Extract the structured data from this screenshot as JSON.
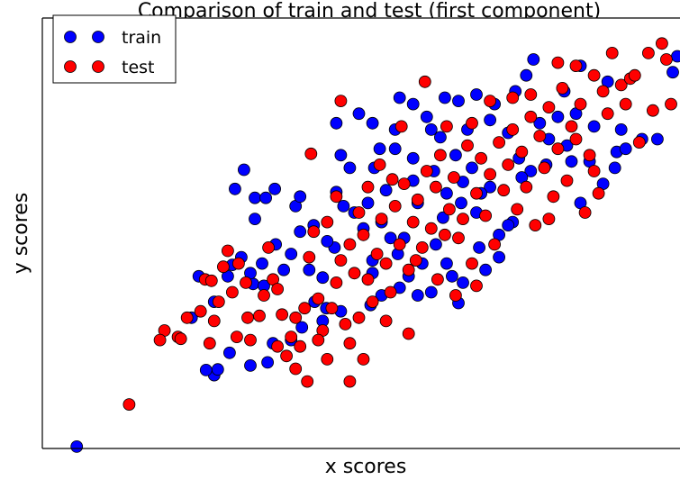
{
  "chart_data": {
    "type": "scatter",
    "title": "Comparison of train and test (first component)",
    "xlabel": "x scores",
    "ylabel": "y scores",
    "xlim": [
      -3.85,
      3.2
    ],
    "ylim": [
      -3.5,
      3.25
    ],
    "grid": false,
    "legend_position": "top-left",
    "ticks_visible": false,
    "series": [
      {
        "name": "train",
        "color": "#0000ff",
        "points": [
          [
            -3.47,
            -3.47
          ],
          [
            -1.95,
            -2.35
          ],
          [
            -1.91,
            -2.26
          ],
          [
            -2.04,
            -2.27
          ],
          [
            -1.78,
            -2.0
          ],
          [
            -1.55,
            -2.2
          ],
          [
            -1.36,
            -2.15
          ],
          [
            -1.3,
            -1.85
          ],
          [
            -1.1,
            -1.8
          ],
          [
            -0.98,
            -1.6
          ],
          [
            -0.84,
            -1.2
          ],
          [
            -0.71,
            -1.3
          ],
          [
            -1.52,
            -0.92
          ],
          [
            -1.4,
            -0.95
          ],
          [
            -1.65,
            -0.5
          ],
          [
            -1.55,
            -0.75
          ],
          [
            -1.42,
            -0.6
          ],
          [
            -1.18,
            -0.7
          ],
          [
            -0.9,
            -0.7
          ],
          [
            -0.75,
            -0.82
          ],
          [
            -0.62,
            -0.35
          ],
          [
            -1.0,
            -0.1
          ],
          [
            -0.85,
            0.0
          ],
          [
            -1.72,
            0.57
          ],
          [
            -1.5,
            0.43
          ],
          [
            -1.38,
            0.43
          ],
          [
            -1.28,
            0.57
          ],
          [
            -1.05,
            0.3
          ],
          [
            -0.6,
            0.52
          ],
          [
            -0.52,
            0.3
          ],
          [
            -0.4,
            0.2
          ],
          [
            -0.25,
            0.35
          ],
          [
            -0.3,
            -0.05
          ],
          [
            -0.1,
            0.05
          ],
          [
            0.0,
            -0.2
          ],
          [
            0.08,
            -0.45
          ],
          [
            0.2,
            -0.8
          ],
          [
            0.3,
            -1.1
          ],
          [
            0.35,
            -0.6
          ],
          [
            0.5,
            -0.3
          ],
          [
            0.62,
            -0.6
          ],
          [
            0.68,
            -0.8
          ],
          [
            -0.22,
            -1.25
          ],
          [
            -0.1,
            -1.1
          ],
          [
            0.1,
            -0.98
          ],
          [
            -0.2,
            -0.75
          ],
          [
            0.45,
            -1.05
          ],
          [
            0.8,
            -0.9
          ],
          [
            1.05,
            -0.7
          ],
          [
            1.2,
            -0.15
          ],
          [
            1.35,
            0.05
          ],
          [
            1.1,
            0.6
          ],
          [
            0.9,
            0.9
          ],
          [
            0.72,
            1.1
          ],
          [
            0.55,
            1.38
          ],
          [
            0.4,
            1.7
          ],
          [
            0.25,
            1.9
          ],
          [
            0.1,
            2.0
          ],
          [
            -0.18,
            0.9
          ],
          [
            -0.12,
            1.2
          ],
          [
            0.05,
            1.2
          ],
          [
            0.25,
            1.05
          ],
          [
            0.48,
            0.85
          ],
          [
            0.62,
            0.5
          ],
          [
            0.78,
            0.35
          ],
          [
            0.95,
            0.2
          ],
          [
            1.0,
            0.5
          ],
          [
            0.85,
            1.5
          ],
          [
            1.1,
            1.65
          ],
          [
            1.3,
            1.45
          ],
          [
            1.42,
            1.05
          ],
          [
            1.55,
            0.85
          ],
          [
            1.65,
            1.6
          ],
          [
            1.75,
            1.35
          ],
          [
            1.85,
            1.7
          ],
          [
            1.95,
            1.25
          ],
          [
            2.05,
            1.75
          ],
          [
            1.92,
            2.1
          ],
          [
            2.1,
            2.5
          ],
          [
            2.4,
            2.25
          ],
          [
            2.55,
            1.5
          ],
          [
            2.48,
            0.9
          ],
          [
            2.35,
            0.65
          ],
          [
            2.1,
            0.35
          ],
          [
            2.2,
            1.0
          ],
          [
            1.58,
            2.6
          ],
          [
            1.5,
            2.35
          ],
          [
            1.38,
            2.1
          ],
          [
            1.15,
            1.9
          ],
          [
            0.95,
            2.05
          ],
          [
            0.75,
            1.95
          ],
          [
            0.6,
            2.0
          ],
          [
            -0.2,
            1.6
          ],
          [
            -0.6,
            1.6
          ],
          [
            -0.55,
            1.1
          ],
          [
            -0.45,
            0.9
          ],
          [
            1.3,
            0.0
          ],
          [
            1.2,
            -0.5
          ],
          [
            0.98,
            -0.35
          ],
          [
            2.25,
            1.55
          ],
          [
            2.5,
            1.15
          ],
          [
            2.6,
            1.2
          ],
          [
            2.78,
            1.35
          ],
          [
            2.95,
            1.35
          ],
          [
            3.12,
            2.4
          ],
          [
            3.17,
            2.65
          ],
          [
            -0.35,
            1.75
          ],
          [
            -1.62,
            0.87
          ],
          [
            -1.5,
            0.1
          ],
          [
            -1.75,
            -0.62
          ],
          [
            -1.1,
            -0.45
          ],
          [
            -0.7,
            -0.25
          ],
          [
            -0.2,
            -0.55
          ],
          [
            0.15,
            -0.2
          ],
          [
            0.3,
            0.35
          ],
          [
            0.58,
            0.12
          ],
          [
            0.8,
            0.68
          ],
          [
            1.45,
            0.75
          ],
          [
            1.72,
            0.95
          ],
          [
            2.0,
            1.0
          ],
          [
            -0.55,
            -1.35
          ],
          [
            -0.75,
            -1.5
          ],
          [
            0.05,
            1.5
          ],
          [
            0.45,
            1.5
          ],
          [
            -2.2,
            -1.45
          ],
          [
            -1.95,
            -1.2
          ],
          [
            -2.12,
            -0.8
          ],
          [
            -1.8,
            -0.8
          ],
          [
            -1.27,
            -0.3
          ],
          [
            0.75,
            -1.22
          ],
          [
            -1.0,
            0.45
          ],
          [
            0.25,
            0.7
          ],
          [
            -0.05,
            0.55
          ]
        ]
      },
      {
        "name": "test",
        "color": "#ff0000",
        "points": [
          [
            -2.89,
            -2.81
          ],
          [
            -2.35,
            -1.75
          ],
          [
            -2.32,
            -1.78
          ],
          [
            -2.1,
            -1.35
          ],
          [
            -2.05,
            -0.85
          ],
          [
            -1.98,
            -0.87
          ],
          [
            -1.9,
            -1.2
          ],
          [
            -1.85,
            -0.65
          ],
          [
            -1.8,
            -0.4
          ],
          [
            -1.75,
            -1.05
          ],
          [
            -1.68,
            -0.6
          ],
          [
            -1.6,
            -0.9
          ],
          [
            -1.58,
            -1.45
          ],
          [
            -1.55,
            -1.8
          ],
          [
            -1.45,
            -1.42
          ],
          [
            -1.4,
            -1.1
          ],
          [
            -1.35,
            -0.35
          ],
          [
            -1.3,
            -0.85
          ],
          [
            -1.25,
            -1.0
          ],
          [
            -1.2,
            -1.4
          ],
          [
            -1.15,
            -2.05
          ],
          [
            -1.1,
            -1.75
          ],
          [
            -1.05,
            -1.45
          ],
          [
            -1.0,
            -1.9
          ],
          [
            -0.95,
            -1.3
          ],
          [
            -0.9,
            -0.5
          ],
          [
            -0.85,
            -0.1
          ],
          [
            -0.8,
            -1.15
          ],
          [
            -0.75,
            -1.65
          ],
          [
            -0.7,
            -2.1
          ],
          [
            -0.65,
            -1.3
          ],
          [
            -0.6,
            -0.9
          ],
          [
            -0.55,
            -0.55
          ],
          [
            -0.5,
            -1.55
          ],
          [
            -0.45,
            -0.3
          ],
          [
            -0.4,
            -0.75
          ],
          [
            -0.35,
            -1.45
          ],
          [
            -0.3,
            -0.15
          ],
          [
            -0.25,
            -0.85
          ],
          [
            -0.2,
            -1.2
          ],
          [
            -0.15,
            -0.45
          ],
          [
            -0.1,
            0.1
          ],
          [
            -0.05,
            -0.6
          ],
          [
            0.0,
            -1.05
          ],
          [
            0.05,
            0.3
          ],
          [
            0.1,
            -0.3
          ],
          [
            0.15,
            0.65
          ],
          [
            0.2,
            -0.7
          ],
          [
            0.25,
            0.05
          ],
          [
            0.3,
            0.4
          ],
          [
            0.35,
            -0.35
          ],
          [
            0.4,
            0.85
          ],
          [
            0.45,
            -0.05
          ],
          [
            0.5,
            0.6
          ],
          [
            0.55,
            1.1
          ],
          [
            0.6,
            -0.15
          ],
          [
            0.65,
            0.25
          ],
          [
            0.7,
            0.75
          ],
          [
            0.75,
            -0.2
          ],
          [
            0.8,
            0.1
          ],
          [
            0.85,
            1.25
          ],
          [
            0.9,
            -0.6
          ],
          [
            0.95,
            0.5
          ],
          [
            1.0,
            1.05
          ],
          [
            1.05,
            0.15
          ],
          [
            1.1,
            0.8
          ],
          [
            1.15,
            -0.3
          ],
          [
            1.2,
            1.3
          ],
          [
            1.25,
            0.55
          ],
          [
            1.3,
            0.95
          ],
          [
            1.35,
            1.5
          ],
          [
            1.4,
            0.25
          ],
          [
            1.45,
            1.15
          ],
          [
            1.5,
            0.6
          ],
          [
            1.55,
            1.7
          ],
          [
            1.6,
            0.0
          ],
          [
            1.65,
            1.4
          ],
          [
            1.7,
            0.9
          ],
          [
            1.75,
            1.85
          ],
          [
            1.8,
            0.45
          ],
          [
            1.85,
            1.2
          ],
          [
            1.9,
            2.15
          ],
          [
            1.95,
            0.7
          ],
          [
            2.0,
            1.55
          ],
          [
            2.05,
            2.5
          ],
          [
            2.1,
            1.9
          ],
          [
            2.15,
            0.2
          ],
          [
            2.2,
            1.1
          ],
          [
            2.25,
            2.35
          ],
          [
            2.3,
            0.5
          ],
          [
            2.35,
            2.1
          ],
          [
            2.4,
            1.75
          ],
          [
            2.45,
            2.7
          ],
          [
            2.55,
            2.2
          ],
          [
            2.6,
            1.9
          ],
          [
            2.65,
            2.3
          ],
          [
            3.0,
            2.85
          ],
          [
            3.1,
            1.9
          ],
          [
            3.05,
            2.6
          ],
          [
            2.9,
            1.8
          ],
          [
            2.75,
            1.3
          ],
          [
            2.85,
            2.7
          ],
          [
            2.7,
            2.35
          ],
          [
            -1.25,
            -1.9
          ],
          [
            -1.7,
            -1.75
          ],
          [
            -1.95,
            -1.5
          ],
          [
            -2.0,
            -1.85
          ],
          [
            -2.25,
            -1.45
          ],
          [
            -2.5,
            -1.65
          ],
          [
            -2.55,
            -1.8
          ],
          [
            -0.3,
            -2.1
          ],
          [
            -0.45,
            -1.85
          ],
          [
            -0.05,
            -1.5
          ],
          [
            0.2,
            -1.7
          ],
          [
            -0.8,
            -1.8
          ],
          [
            -1.05,
            -2.25
          ],
          [
            -0.92,
            -2.45
          ],
          [
            -0.45,
            -2.45
          ],
          [
            -0.88,
            1.12
          ],
          [
            -0.55,
            1.95
          ],
          [
            -0.25,
            0.6
          ],
          [
            -0.12,
            0.95
          ],
          [
            0.12,
            1.55
          ],
          [
            0.38,
            2.25
          ],
          [
            -0.6,
            0.45
          ],
          [
            -0.7,
            0.05
          ],
          [
            -0.35,
            0.2
          ],
          [
            0.02,
            0.72
          ],
          [
            0.28,
            -0.55
          ],
          [
            0.52,
            -0.85
          ],
          [
            0.72,
            -1.1
          ],
          [
            0.95,
            -0.95
          ],
          [
            0.62,
            1.55
          ],
          [
            0.9,
            1.6
          ],
          [
            1.1,
            1.95
          ],
          [
            1.35,
            2.0
          ],
          [
            1.55,
            2.05
          ],
          [
            1.85,
            2.55
          ],
          [
            2.05,
            1.35
          ],
          [
            2.25,
            0.85
          ],
          [
            1.75,
            0.1
          ]
        ]
      }
    ]
  }
}
